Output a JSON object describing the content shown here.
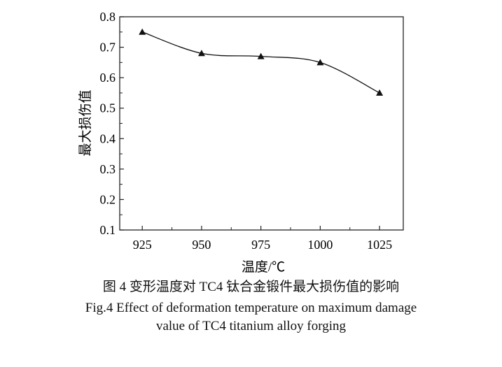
{
  "chart_data": {
    "type": "line",
    "xlabel": "温度/℃",
    "ylabel": "最大损伤值",
    "x": [
      925,
      950,
      975,
      1000,
      1025
    ],
    "values": [
      0.75,
      0.68,
      0.67,
      0.65,
      0.55
    ],
    "xticks": [
      "925",
      "950",
      "975",
      "1000",
      "1025"
    ],
    "yticks": [
      "0.1",
      "0.2",
      "0.3",
      "0.4",
      "0.5",
      "0.6",
      "0.7",
      "0.8"
    ],
    "xlim": [
      915.5,
      1035
    ],
    "ylim": [
      0.1,
      0.8
    ],
    "marker": "triangle",
    "grid": false,
    "color": "#111111"
  },
  "caption": {
    "cn": "图 4  变形温度对 TC4 钛合金锻件最大损伤值的影响",
    "en_line1": "Fig.4  Effect of deformation temperature on maximum damage",
    "en_line2": "value of TC4 titanium alloy forging"
  }
}
